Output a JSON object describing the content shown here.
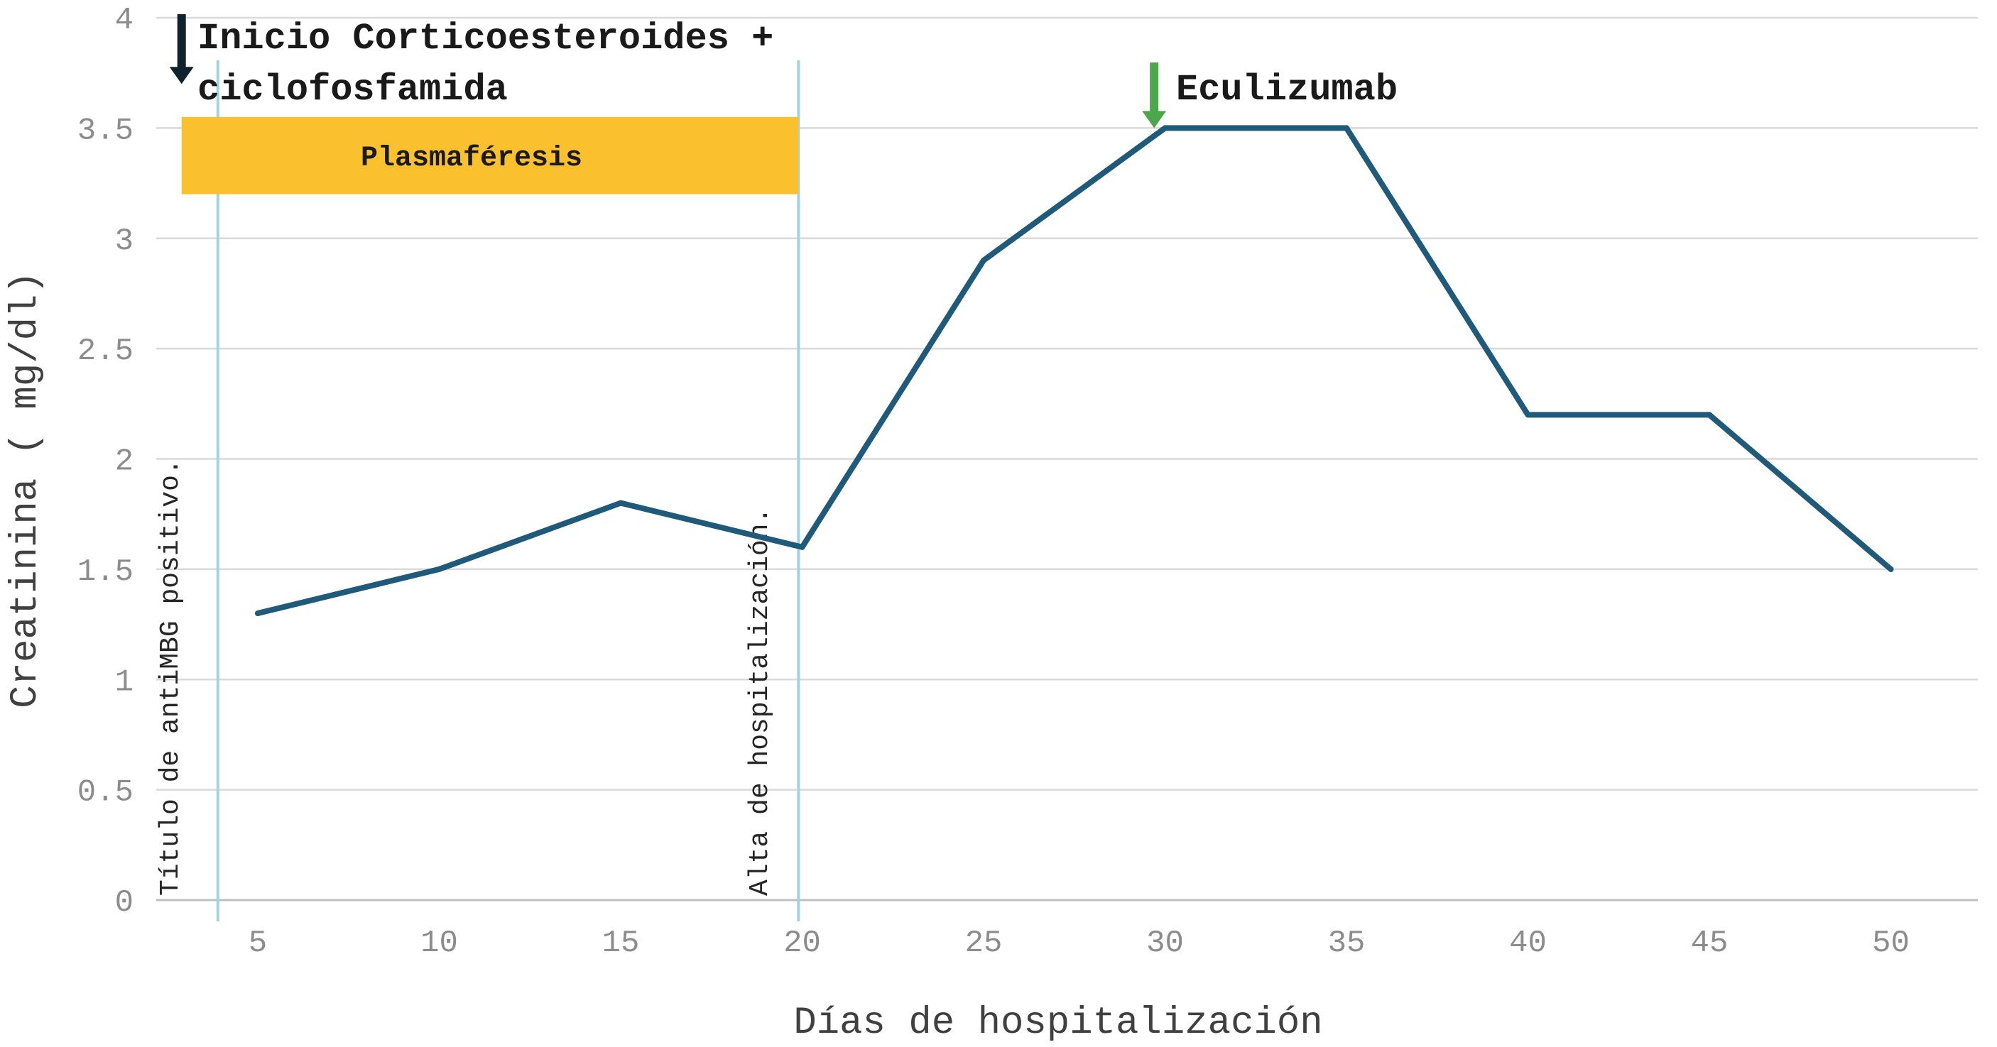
{
  "chart_data": {
    "type": "line",
    "xlabel": "Días de hospitalización",
    "ylabel": "Creatinina ( mg/dl)",
    "ylim": [
      0,
      4
    ],
    "yticks": [
      "0",
      "0.5",
      "1",
      "1.5",
      "2",
      "2.5",
      "3",
      "3.5",
      "4"
    ],
    "categories": [
      "5",
      "10",
      "15",
      "20",
      "25",
      "30",
      "35",
      "40",
      "45",
      "50"
    ],
    "grid": "horizontal",
    "series": [
      {
        "values": [
          1.3,
          1.5,
          1.8,
          1.6,
          2.9,
          3.5,
          3.5,
          2.2,
          2.2,
          1.5
        ],
        "color": "#1f5a7a"
      }
    ],
    "vlines": [
      {
        "x": 3.9,
        "label": "Título de antiMBG positivo.",
        "color": "#9fd4e6"
      },
      {
        "x": 19.9,
        "label": "Alta de hospitalización.",
        "color": "#9fd4e6"
      }
    ],
    "band": {
      "x_start": 2.9,
      "x_end": 19.9,
      "y_low": 3.2,
      "y_high": 3.55,
      "label": "Plasmaféresis",
      "color": "#fbc02d"
    },
    "annotations": [
      {
        "x": 2.9,
        "y": 3.7,
        "text_lines": [
          "Inicio Corticoesteroides +",
          "ciclofosfamida"
        ],
        "arrow_color": "#10222e"
      },
      {
        "x": 29.7,
        "y": 3.5,
        "text_lines": [
          "Eculizumab"
        ],
        "arrow_color": "#4ca64c"
      }
    ]
  }
}
